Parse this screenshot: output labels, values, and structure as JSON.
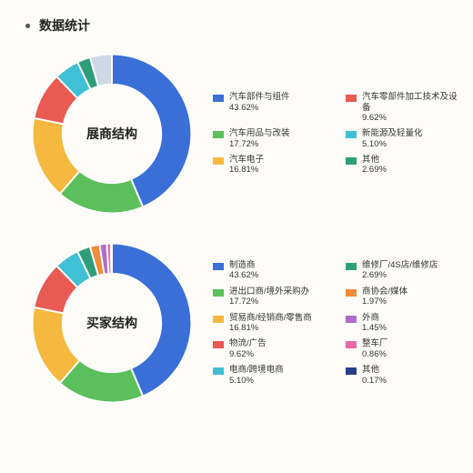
{
  "page_title": "数据统计",
  "background_color": "#fdfcf9",
  "charts": [
    {
      "type": "donut",
      "center_label": "展商结构",
      "inner_radius_ratio": 0.62,
      "legend_columns": 2,
      "legend_fontsize": 9.5,
      "center_fontsize": 14,
      "slices": [
        {
          "label": "汽车部件与组件",
          "value": 43.62,
          "color": "#3a6fd8"
        },
        {
          "label": "汽车用品与改装",
          "value": 17.72,
          "color": "#5bbf5b"
        },
        {
          "label": "汽车电子",
          "value": 16.81,
          "color": "#f4b93e"
        },
        {
          "label": "汽车零部件加工技术及设备",
          "value": 9.62,
          "color": "#e85a52"
        },
        {
          "label": "新能源及轻量化",
          "value": 5.1,
          "color": "#3fc0d4"
        },
        {
          "label": "其他",
          "value": 2.69,
          "color": "#2e9d7a"
        },
        {
          "label": "",
          "value": 4.44,
          "color": "#cfd6e6",
          "hide_legend": true
        }
      ]
    },
    {
      "type": "donut",
      "center_label": "买家结构",
      "inner_radius_ratio": 0.62,
      "legend_columns": 2,
      "legend_fontsize": 9.5,
      "center_fontsize": 14,
      "slices": [
        {
          "label": "制造商",
          "value": 43.62,
          "color": "#3a6fd8"
        },
        {
          "label": "进出口商/境外采购办",
          "value": 17.72,
          "color": "#5bbf5b"
        },
        {
          "label": "贸易商/经销商/零售商",
          "value": 16.81,
          "color": "#f4b93e"
        },
        {
          "label": "物流/广告",
          "value": 9.62,
          "color": "#e85a52"
        },
        {
          "label": "电商/跨境电商",
          "value": 5.1,
          "color": "#3fc0d4"
        },
        {
          "label": "维修厂/4S店/维修店",
          "value": 2.69,
          "color": "#2e9d7a"
        },
        {
          "label": "商协会/媒体",
          "value": 1.97,
          "color": "#f08c3a"
        },
        {
          "label": "外商",
          "value": 1.45,
          "color": "#b06ac9"
        },
        {
          "label": "整车厂",
          "value": 0.86,
          "color": "#e66aa6"
        },
        {
          "label": "其他",
          "value": 0.17,
          "color": "#2a3f8a"
        }
      ]
    }
  ]
}
